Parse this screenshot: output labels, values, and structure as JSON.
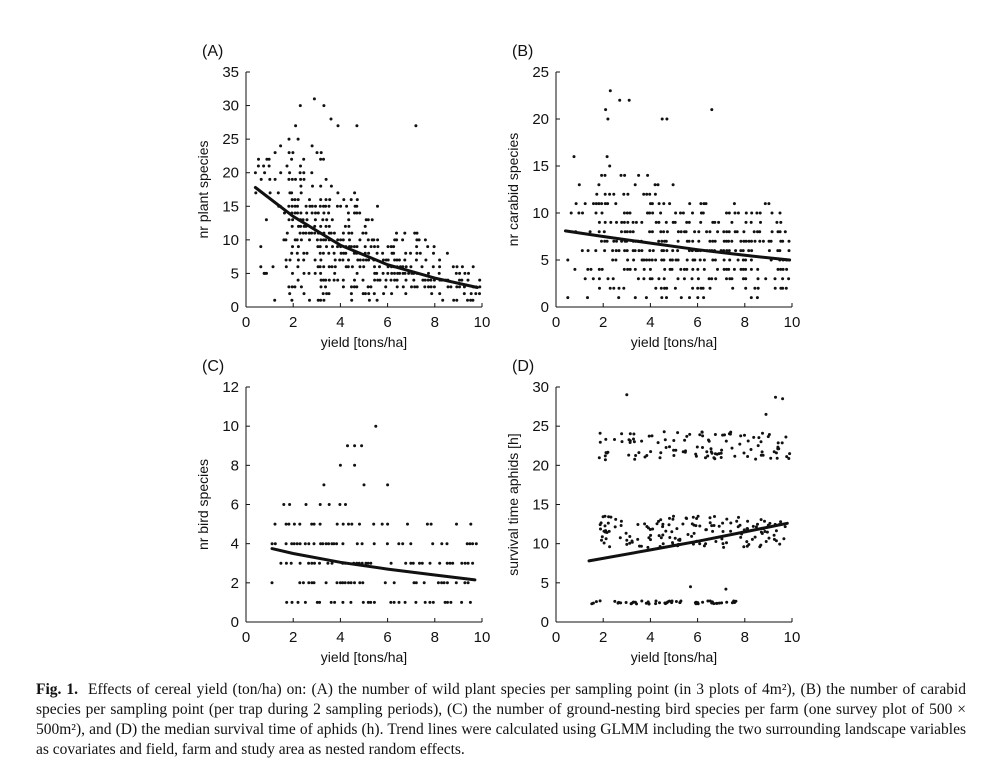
{
  "chart_data": [
    {
      "type": "scatter",
      "panel_label": "(A)",
      "xlabel": "yield [tons/ha]",
      "ylabel": "nr plant species",
      "xlim": [
        0,
        10
      ],
      "ylim": [
        0,
        35
      ],
      "xticks": [
        0,
        2,
        4,
        6,
        8,
        10
      ],
      "yticks": [
        0,
        5,
        10,
        15,
        20,
        25,
        30,
        35
      ],
      "x_range": [
        0.4,
        9.9
      ],
      "y_levels": [
        1,
        2,
        3,
        4,
        5,
        6,
        7,
        8,
        9,
        10,
        11,
        12,
        13,
        14,
        15,
        16,
        17,
        18,
        19,
        20,
        21,
        22,
        23,
        24,
        25
      ],
      "outliers": [
        {
          "x": 2.9,
          "y": 31
        },
        {
          "x": 3.3,
          "y": 30
        },
        {
          "x": 2.3,
          "y": 30
        },
        {
          "x": 3.6,
          "y": 28
        },
        {
          "x": 7.2,
          "y": 27
        },
        {
          "x": 4.7,
          "y": 27
        },
        {
          "x": 3.9,
          "y": 27
        },
        {
          "x": 2.1,
          "y": 27
        },
        {
          "x": 0.8,
          "y": 5
        }
      ],
      "trend": [
        {
          "x": 0.4,
          "y": 17.8
        },
        {
          "x": 2,
          "y": 13.5
        },
        {
          "x": 4,
          "y": 9.2
        },
        {
          "x": 6,
          "y": 6.3
        },
        {
          "x": 8,
          "y": 4.3
        },
        {
          "x": 9.8,
          "y": 2.9
        }
      ],
      "grid": false
    },
    {
      "type": "scatter",
      "panel_label": "(B)",
      "xlabel": "yield [tons/ha]",
      "ylabel": "nr carabid species",
      "xlim": [
        0,
        10
      ],
      "ylim": [
        0,
        25
      ],
      "xticks": [
        0,
        2,
        4,
        6,
        8,
        10
      ],
      "yticks": [
        0,
        5,
        10,
        15,
        20,
        25
      ],
      "x_range": [
        0.5,
        9.9
      ],
      "y_levels": [
        1,
        2,
        3,
        4,
        5,
        6,
        7,
        8,
        9,
        10,
        11,
        12,
        13,
        14,
        15,
        16,
        17,
        18
      ],
      "outliers": [
        {
          "x": 2.3,
          "y": 23
        },
        {
          "x": 2.7,
          "y": 22
        },
        {
          "x": 3.1,
          "y": 22
        },
        {
          "x": 6.6,
          "y": 21
        },
        {
          "x": 2.1,
          "y": 21
        },
        {
          "x": 2.2,
          "y": 20
        },
        {
          "x": 4.5,
          "y": 20
        },
        {
          "x": 4.7,
          "y": 20
        },
        {
          "x": 0.5,
          "y": 1
        },
        {
          "x": 0.8,
          "y": 4
        }
      ],
      "trend": [
        {
          "x": 0.4,
          "y": 8.1
        },
        {
          "x": 2,
          "y": 7.5
        },
        {
          "x": 4,
          "y": 6.8
        },
        {
          "x": 6,
          "y": 6.1
        },
        {
          "x": 8,
          "y": 5.5
        },
        {
          "x": 9.9,
          "y": 5.0
        }
      ],
      "grid": false
    },
    {
      "type": "scatter",
      "panel_label": "(C)",
      "xlabel": "yield [tons/ha]",
      "ylabel": "nr bird species",
      "xlim": [
        0,
        10
      ],
      "ylim": [
        0,
        12
      ],
      "xticks": [
        0,
        2,
        4,
        6,
        8,
        10
      ],
      "yticks": [
        0,
        2,
        4,
        6,
        8,
        10,
        12
      ],
      "x_range": [
        1.1,
        9.7
      ],
      "y_levels": [
        1,
        2,
        3,
        4,
        5,
        6
      ],
      "outliers": [
        {
          "x": 5.5,
          "y": 10
        },
        {
          "x": 4.3,
          "y": 9
        },
        {
          "x": 4.6,
          "y": 9
        },
        {
          "x": 4.9,
          "y": 9
        },
        {
          "x": 4.0,
          "y": 8
        },
        {
          "x": 4.6,
          "y": 8
        },
        {
          "x": 3.3,
          "y": 7
        },
        {
          "x": 5.0,
          "y": 7
        },
        {
          "x": 6.0,
          "y": 7
        },
        {
          "x": 1.1,
          "y": 2
        }
      ],
      "trend": [
        {
          "x": 1.1,
          "y": 3.75
        },
        {
          "x": 2,
          "y": 3.5
        },
        {
          "x": 4,
          "y": 3.05
        },
        {
          "x": 6,
          "y": 2.7
        },
        {
          "x": 8,
          "y": 2.4
        },
        {
          "x": 9.7,
          "y": 2.15
        }
      ],
      "grid": false
    },
    {
      "type": "scatter",
      "panel_label": "(D)",
      "xlabel": "yield [tons/ha]",
      "ylabel": "survival time aphids [h]",
      "xlim": [
        0,
        10
      ],
      "ylim": [
        0,
        30
      ],
      "xticks": [
        0,
        2,
        4,
        6,
        8,
        10
      ],
      "yticks": [
        0,
        5,
        10,
        15,
        20,
        25,
        30
      ],
      "x_range": [
        1.4,
        9.8
      ],
      "clusters": [
        {
          "y_center": 2.5,
          "spread": 0.2,
          "x_range": [
            1.4,
            7.7
          ],
          "n": 55
        },
        {
          "y_center": 11.5,
          "spread": 2.0,
          "x_range": [
            1.8,
            9.8
          ],
          "n": 150
        },
        {
          "y_center": 22.5,
          "spread": 1.8,
          "x_range": [
            1.8,
            9.9
          ],
          "n": 110
        }
      ],
      "outliers": [
        {
          "x": 3.0,
          "y": 29
        },
        {
          "x": 9.3,
          "y": 28.7
        },
        {
          "x": 9.6,
          "y": 28.5
        },
        {
          "x": 8.9,
          "y": 26.5
        },
        {
          "x": 5.7,
          "y": 4.5
        },
        {
          "x": 7.2,
          "y": 4.2
        },
        {
          "x": 9.9,
          "y": 21.5
        }
      ],
      "trend": [
        {
          "x": 1.4,
          "y": 7.8
        },
        {
          "x": 4,
          "y": 9.2
        },
        {
          "x": 6,
          "y": 10.3
        },
        {
          "x": 8,
          "y": 11.5
        },
        {
          "x": 9.8,
          "y": 12.6
        }
      ],
      "grid": false
    }
  ],
  "caption": {
    "label": "Fig. 1.",
    "line1": "Effects of cereal yield (ton/ha) on: (A) the number of wild plant species per sampling point (in 3 plots of 4m²), (B) the number",
    "line2": "of carabid species per sampling point (per trap during 2 sampling periods), (C) the number of ground-nesting bird species per farm",
    "line3": "(one survey plot of 500 × 500m²), and (D) the median survival time of aphids (h). Trend lines were calculated using GLMM",
    "line4": "including the two surrounding landscape variables as covariates and field, farm and study area as nested random effects."
  }
}
